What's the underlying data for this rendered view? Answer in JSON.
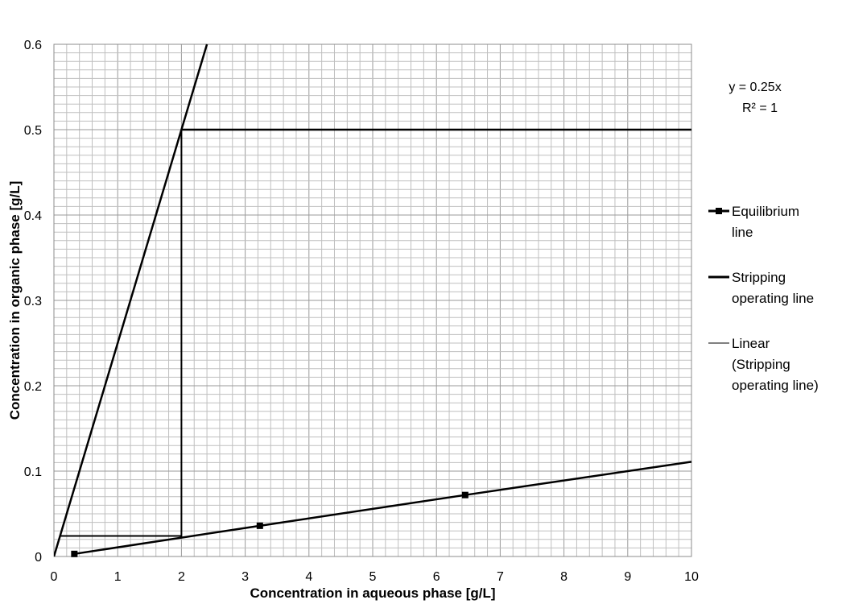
{
  "chart_data": {
    "type": "line",
    "title": "",
    "xlabel": "Concentration in aqueous phase [g/L]",
    "ylabel": "Concentration in organic phase [g/L]",
    "xlim": [
      0,
      10
    ],
    "ylim": [
      0,
      0.6
    ],
    "x_ticks": [
      "0",
      "1",
      "2",
      "3",
      "4",
      "5",
      "6",
      "7",
      "8",
      "9",
      "10"
    ],
    "y_ticks": [
      "0",
      "0.1",
      "0.2",
      "0.3",
      "0.4",
      "0.5",
      "0.6"
    ],
    "grid": true,
    "legend_position": "right",
    "trendline_equation": "y = 0.25x",
    "trendline_r2": "R² = 1",
    "series": [
      {
        "name": "Equilibrium line",
        "kind": "line-with-markers",
        "color": "#000000",
        "x": [
          0.32,
          3.23,
          6.45,
          10
        ],
        "y": [
          0.003,
          0.036,
          0.072,
          0.111
        ],
        "markers": [
          0,
          1,
          2
        ]
      },
      {
        "name": "Stripping operating line",
        "kind": "line",
        "color": "#000000",
        "x": [
          2.0,
          10
        ],
        "y": [
          0.5,
          0.5
        ]
      },
      {
        "name": "Linear (Stripping operating line)",
        "kind": "trendline",
        "color": "#000000",
        "x": [
          0,
          2.4
        ],
        "y": [
          0,
          0.6
        ]
      }
    ],
    "stage_steps": {
      "color": "#000000",
      "x": [
        0.1,
        2.0,
        2.0
      ],
      "y": [
        0.024,
        0.024,
        0.5
      ]
    }
  }
}
